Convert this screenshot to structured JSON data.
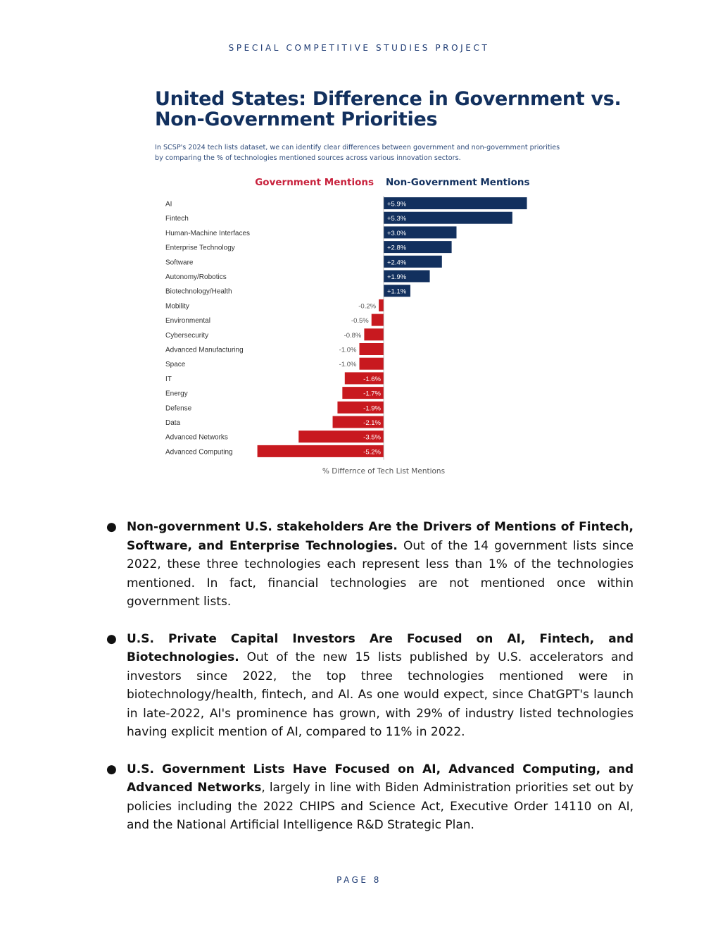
{
  "header": "SPECIAL COMPETITIVE STUDIES PROJECT",
  "figure": {
    "title_line1": "United States: Difference in Government vs.",
    "title_line2": "Non-Government Priorities",
    "subtitle": "In SCSP's 2024 tech lists dataset, we can identify clear differences between government and non-government priorities by comparing the % of technologies mentioned sources across various innovation sectors."
  },
  "chart_data": {
    "type": "bar",
    "orientation": "horizontal",
    "legend": [
      "Government Mentions",
      "Non-Government Mentions"
    ],
    "categories": [
      "AI",
      "Fintech",
      "Human-Machine Interfaces",
      "Enterprise Technology",
      "Software",
      "Autonomy/Robotics",
      "Biotechnology/Health",
      "Mobility",
      "Environmental",
      "Cybersecurity",
      "Advanced Manufacturing",
      "Space",
      "IT",
      "Energy",
      "Defense",
      "Data",
      "Advanced Networks",
      "Advanced Computing"
    ],
    "values": [
      5.9,
      5.3,
      3.0,
      2.8,
      2.4,
      1.9,
      1.1,
      -0.2,
      -0.5,
      -0.8,
      -1.0,
      -1.0,
      -1.6,
      -1.7,
      -1.9,
      -2.1,
      -3.5,
      -5.2
    ],
    "labels": [
      "+5.9%",
      "+5.3%",
      "+3.0%",
      "+2.8%",
      "+2.4%",
      "+1.9%",
      "+1.1%",
      "-0.2%",
      "-0.5%",
      "-0.8%",
      "-1.0%",
      "-1.0%",
      "-1.6%",
      "-1.7%",
      "-1.9%",
      "-2.1%",
      "-3.5%",
      "-5.2%"
    ],
    "xlabel": "% Differnce of Tech List Mentions",
    "colors": {
      "positive": "#12305e",
      "negative": "#c8191f",
      "gov_legend": "#c8213c",
      "nongov_legend": "#12305e"
    }
  },
  "bullets": [
    {
      "bold": "Non-government U.S. stakeholders Are the Drivers of Mentions of Fintech, Software, and Enterprise Technologies.",
      "text": " Out of the 14 government lists since 2022, these three technologies each represent less than 1% of the technologies mentioned. In fact, financial technologies are not mentioned once within government lists."
    },
    {
      "bold": "U.S. Private Capital Investors Are Focused on AI, Fintech, and Biotechnologies.",
      "text": " Out of the new 15 lists published by U.S. accelerators and investors since 2022, the top three technologies mentioned were in biotechnology/health, fintech, and AI. As one would expect, since ChatGPT's launch in late-2022, AI's prominence has grown, with 29% of industry listed technologies having explicit mention of AI, compared to 11% in 2022."
    },
    {
      "bold": "U.S. Government Lists Have Focused on AI, Advanced Computing, and Advanced Networks",
      "text": ", largely in line with Biden Administration priorities set out by policies including the 2022 CHIPS and Science Act, Executive Order 14110 on AI, and the National Artificial Intelligence R&D Strategic Plan."
    }
  ],
  "footer": "PAGE 8"
}
